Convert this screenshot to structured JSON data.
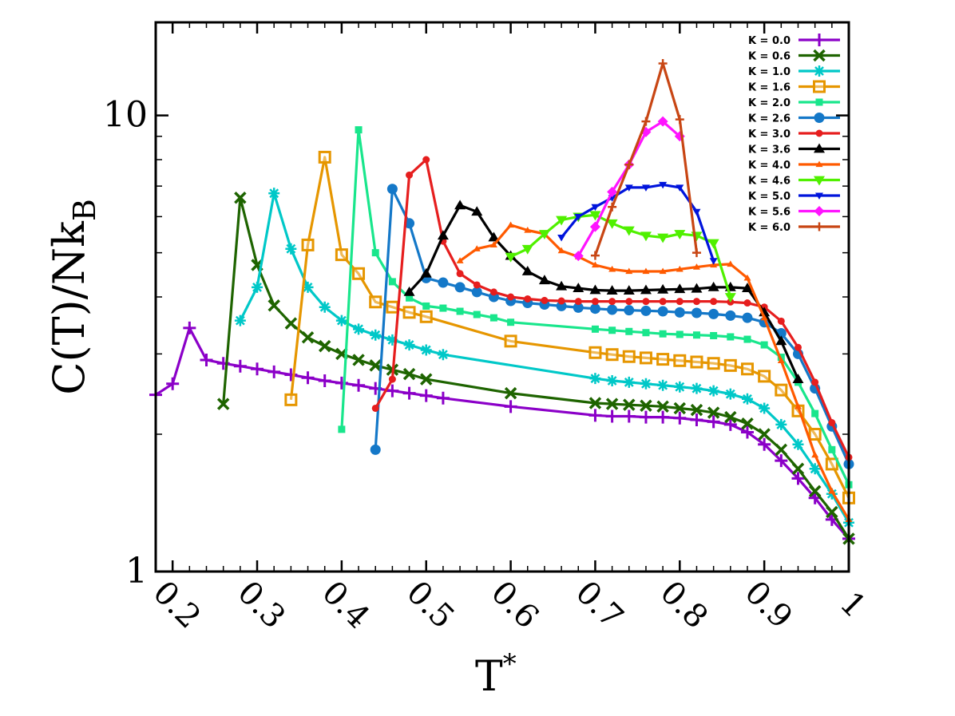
{
  "chart_data": {
    "type": "line",
    "xlabel": "T",
    "xlabel_sup": "*",
    "ylabel": "C(T)/Nk",
    "ylabel_sub": "B",
    "xlim": [
      0.18,
      1.0
    ],
    "ylim": [
      1,
      16
    ],
    "yscale": "log",
    "x_ticks": [
      0.2,
      0.3,
      0.4,
      0.5,
      0.6,
      0.7,
      0.8,
      0.9,
      1.0
    ],
    "x_tick_labels": [
      "0.2",
      "0.3",
      "0.4",
      "0.5",
      "0.6",
      "0.7",
      "0.8",
      "0.9",
      "1"
    ],
    "y_ticks": [
      1,
      10
    ],
    "y_tick_labels": [
      "1",
      "10"
    ],
    "grid": false,
    "legend_position": "top-right",
    "series": [
      {
        "name": "K = 0.0",
        "color": "#8b00c8",
        "marker": "plus",
        "x": [
          0.18,
          0.2,
          0.22,
          0.24,
          0.26,
          0.28,
          0.3,
          0.32,
          0.34,
          0.36,
          0.38,
          0.4,
          0.42,
          0.44,
          0.46,
          0.48,
          0.5,
          0.52,
          0.6,
          0.7,
          0.72,
          0.74,
          0.76,
          0.78,
          0.8,
          0.82,
          0.84,
          0.86,
          0.88,
          0.9,
          0.92,
          0.94,
          0.96,
          0.98,
          1.0
        ],
        "y": [
          2.44,
          2.58,
          3.42,
          2.91,
          2.86,
          2.82,
          2.78,
          2.74,
          2.7,
          2.66,
          2.62,
          2.59,
          2.56,
          2.52,
          2.49,
          2.46,
          2.43,
          2.4,
          2.3,
          2.2,
          2.19,
          2.19,
          2.18,
          2.18,
          2.17,
          2.15,
          2.13,
          2.1,
          2.02,
          1.9,
          1.75,
          1.6,
          1.45,
          1.3,
          1.18
        ]
      },
      {
        "name": "K = 0.6",
        "color": "#1e6400",
        "marker": "x",
        "x": [
          0.26,
          0.28,
          0.3,
          0.32,
          0.34,
          0.36,
          0.38,
          0.4,
          0.42,
          0.44,
          0.46,
          0.48,
          0.5,
          0.6,
          0.7,
          0.72,
          0.74,
          0.76,
          0.78,
          0.8,
          0.82,
          0.84,
          0.86,
          0.88,
          0.9,
          0.92,
          0.94,
          0.96,
          0.98,
          1.0
        ],
        "y": [
          2.33,
          6.6,
          4.7,
          3.83,
          3.5,
          3.26,
          3.12,
          3.0,
          2.91,
          2.83,
          2.77,
          2.71,
          2.64,
          2.46,
          2.34,
          2.33,
          2.32,
          2.31,
          2.3,
          2.28,
          2.26,
          2.23,
          2.18,
          2.11,
          2.0,
          1.85,
          1.68,
          1.5,
          1.35,
          1.18
        ]
      },
      {
        "name": "K = 1.0",
        "color": "#00c8c8",
        "marker": "asterisk",
        "x": [
          0.28,
          0.3,
          0.32,
          0.34,
          0.36,
          0.38,
          0.4,
          0.42,
          0.44,
          0.46,
          0.48,
          0.5,
          0.52,
          0.7,
          0.72,
          0.74,
          0.76,
          0.78,
          0.8,
          0.82,
          0.84,
          0.86,
          0.88,
          0.9,
          0.92,
          0.94,
          0.96,
          0.98,
          1.0
        ],
        "y": [
          3.55,
          4.2,
          6.75,
          5.1,
          4.2,
          3.8,
          3.55,
          3.4,
          3.3,
          3.22,
          3.14,
          3.06,
          2.99,
          2.65,
          2.62,
          2.6,
          2.58,
          2.56,
          2.54,
          2.52,
          2.49,
          2.45,
          2.39,
          2.28,
          2.1,
          1.9,
          1.68,
          1.48,
          1.28
        ]
      },
      {
        "name": "K = 1.6",
        "color": "#e69600",
        "marker": "square",
        "x": [
          0.34,
          0.36,
          0.38,
          0.4,
          0.42,
          0.44,
          0.46,
          0.48,
          0.5,
          0.6,
          0.7,
          0.72,
          0.74,
          0.76,
          0.78,
          0.8,
          0.82,
          0.84,
          0.86,
          0.88,
          0.9,
          0.92,
          0.94,
          0.96,
          0.98,
          1.0
        ],
        "y": [
          2.38,
          5.2,
          8.1,
          4.95,
          4.5,
          3.9,
          3.8,
          3.7,
          3.62,
          3.2,
          3.02,
          2.99,
          2.96,
          2.94,
          2.92,
          2.9,
          2.88,
          2.86,
          2.83,
          2.78,
          2.68,
          2.5,
          2.25,
          2.0,
          1.72,
          1.45
        ]
      },
      {
        "name": "K = 2.0",
        "color": "#19e68c",
        "marker": "square-small",
        "x": [
          0.4,
          0.42,
          0.44,
          0.46,
          0.48,
          0.5,
          0.52,
          0.54,
          0.56,
          0.58,
          0.6,
          0.7,
          0.72,
          0.74,
          0.76,
          0.78,
          0.8,
          0.82,
          0.84,
          0.86,
          0.88,
          0.9,
          0.92,
          0.94,
          0.96,
          0.98,
          1.0
        ],
        "y": [
          2.05,
          9.3,
          5.0,
          4.32,
          3.98,
          3.82,
          3.78,
          3.72,
          3.66,
          3.6,
          3.52,
          3.4,
          3.38,
          3.36,
          3.34,
          3.32,
          3.31,
          3.3,
          3.29,
          3.27,
          3.23,
          3.14,
          2.95,
          2.6,
          2.22,
          1.85,
          1.55
        ]
      },
      {
        "name": "K = 2.6",
        "color": "#1478c8",
        "marker": "circle",
        "x": [
          0.44,
          0.46,
          0.48,
          0.5,
          0.52,
          0.54,
          0.56,
          0.58,
          0.6,
          0.62,
          0.64,
          0.66,
          0.68,
          0.7,
          0.72,
          0.74,
          0.76,
          0.78,
          0.8,
          0.82,
          0.84,
          0.86,
          0.88,
          0.9,
          0.92,
          0.94,
          0.96,
          0.98,
          1.0
        ],
        "y": [
          1.85,
          6.9,
          5.8,
          4.4,
          4.3,
          4.2,
          4.1,
          4.0,
          3.92,
          3.88,
          3.85,
          3.82,
          3.79,
          3.77,
          3.75,
          3.74,
          3.73,
          3.72,
          3.7,
          3.69,
          3.67,
          3.64,
          3.6,
          3.52,
          3.33,
          3.0,
          2.52,
          2.08,
          1.72
        ]
      },
      {
        "name": "K = 3.0",
        "color": "#e61e1e",
        "marker": "dot",
        "x": [
          0.44,
          0.46,
          0.48,
          0.5,
          0.52,
          0.54,
          0.56,
          0.58,
          0.6,
          0.62,
          0.64,
          0.66,
          0.68,
          0.7,
          0.72,
          0.74,
          0.76,
          0.78,
          0.8,
          0.82,
          0.84,
          0.86,
          0.88,
          0.9,
          0.92,
          0.94,
          0.96,
          0.98,
          1.0
        ],
        "y": [
          2.28,
          2.64,
          7.4,
          8.0,
          5.3,
          4.5,
          4.25,
          4.1,
          4.0,
          3.96,
          3.93,
          3.92,
          3.91,
          3.91,
          3.91,
          3.91,
          3.91,
          3.91,
          3.91,
          3.91,
          3.91,
          3.9,
          3.88,
          3.8,
          3.54,
          3.1,
          2.6,
          2.12,
          1.78
        ]
      },
      {
        "name": "K = 3.6",
        "color": "#000000",
        "marker": "triangle",
        "x": [
          0.48,
          0.5,
          0.52,
          0.54,
          0.56,
          0.58,
          0.6,
          0.62,
          0.64,
          0.66,
          0.68,
          0.7,
          0.72,
          0.74,
          0.76,
          0.78,
          0.8,
          0.82,
          0.84,
          0.86,
          0.88,
          0.9,
          0.92,
          0.94
        ],
        "y": [
          4.1,
          4.5,
          5.45,
          6.35,
          6.15,
          5.4,
          4.92,
          4.55,
          4.35,
          4.22,
          4.18,
          4.14,
          4.13,
          4.13,
          4.14,
          4.15,
          4.16,
          4.17,
          4.2,
          4.2,
          4.18,
          3.7,
          3.2,
          2.64
        ]
      },
      {
        "name": "K = 4.0",
        "color": "#ff5a00",
        "marker": "small-triangle",
        "x": [
          0.54,
          0.56,
          0.58,
          0.6,
          0.62,
          0.64,
          0.66,
          0.68,
          0.7,
          0.72,
          0.74,
          0.76,
          0.78,
          0.8,
          0.82,
          0.84,
          0.86,
          0.88,
          0.9,
          0.92,
          0.94,
          0.96,
          0.98,
          1.0
        ],
        "y": [
          4.8,
          5.1,
          5.2,
          5.75,
          5.6,
          5.5,
          5.05,
          4.9,
          4.7,
          4.6,
          4.55,
          4.55,
          4.55,
          4.6,
          4.65,
          4.7,
          4.72,
          4.4,
          3.6,
          2.9,
          2.3,
          1.8,
          1.5,
          1.3
        ]
      },
      {
        "name": "K = 4.6",
        "color": "#50f000",
        "marker": "triangle-down",
        "x": [
          0.6,
          0.62,
          0.64,
          0.66,
          0.68,
          0.7,
          0.72,
          0.74,
          0.76,
          0.78,
          0.8,
          0.82,
          0.84,
          0.86
        ],
        "y": [
          4.9,
          5.1,
          5.5,
          5.9,
          6.0,
          6.05,
          5.8,
          5.6,
          5.45,
          5.4,
          5.5,
          5.45,
          5.25,
          4.0
        ]
      },
      {
        "name": "K = 5.0",
        "color": "#0014dc",
        "marker": "triangle-down-small",
        "x": [
          0.66,
          0.68,
          0.7,
          0.72,
          0.74,
          0.76,
          0.78,
          0.8,
          0.82,
          0.84
        ],
        "y": [
          5.4,
          6.0,
          6.3,
          6.6,
          6.95,
          6.95,
          7.05,
          6.95,
          6.15,
          4.8
        ]
      },
      {
        "name": "K = 5.6",
        "color": "#ff14ff",
        "marker": "diamond",
        "x": [
          0.68,
          0.7,
          0.72,
          0.74,
          0.76,
          0.78,
          0.8
        ],
        "y": [
          4.92,
          5.7,
          6.8,
          7.8,
          9.2,
          9.7,
          9.0
        ]
      },
      {
        "name": "K = 6.0",
        "color": "#c84614",
        "marker": "plus-small",
        "x": [
          0.7,
          0.72,
          0.74,
          0.76,
          0.78,
          0.8,
          0.82
        ],
        "y": [
          4.93,
          6.3,
          7.8,
          9.7,
          13.0,
          9.8,
          5.0
        ]
      }
    ]
  }
}
